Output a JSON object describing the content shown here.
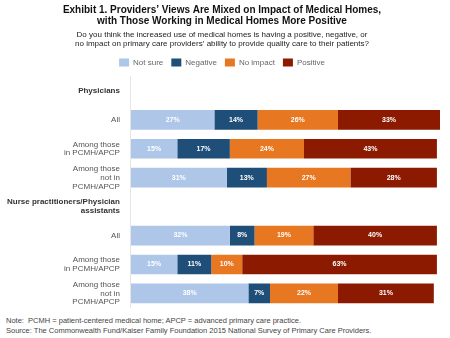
{
  "chart_data": {
    "type": "bar",
    "orientation": "horizontal",
    "stacked": true,
    "title": "Exhibit 1. Providers’ Views Are Mixed on Impact of Medical Homes,\nwith Those Working in Medical Homes More Positive",
    "subtitle": "Do you think the increased use of medical homes is having a positive, negative, or\nno impact on primary care providers’ ability to provide quality care to their patients?",
    "note": "Note:  PCMH = patient-centered medical home; APCP = advanced primary care practice.\nSource: The Commonwealth Fund/Kaiser Family Foundation 2015 National Survey of Primary Care Providers.",
    "categories": [
      "All",
      "Among those\nin PCMH/APCP",
      "Among those\nnot in\nPCMH/APCP",
      "All",
      "Among those\nin PCMH/APCP",
      "Among those\nnot in\nPCMH/APCP"
    ],
    "annotations": [
      {
        "text": "Physicians",
        "before": 0
      },
      {
        "text": "Nurse practitioners/Physician\nassistants",
        "before": 3
      }
    ],
    "series": [
      {
        "name": "Not sure",
        "color": "#aec6e8",
        "values": [
          27,
          15,
          31,
          32,
          15,
          38
        ],
        "value_labels": [
          "27%",
          "15%",
          "31%",
          "32%",
          "15%",
          "38%"
        ]
      },
      {
        "name": "Negative",
        "color": "#1f4e79",
        "values": [
          14,
          17,
          13,
          8,
          11,
          7
        ],
        "value_labels": [
          "14%",
          "17%",
          "13%",
          "8%",
          "11%",
          "7%"
        ]
      },
      {
        "name": "No impact",
        "color": "#e87722",
        "values": [
          26,
          24,
          27,
          19,
          10,
          22
        ],
        "value_labels": [
          "26%",
          "24%",
          "27%",
          "19%",
          "10%",
          "22%"
        ]
      },
      {
        "name": "Positive",
        "color": "#8b1a00",
        "values": [
          33,
          43,
          28,
          40,
          63,
          31
        ],
        "value_labels": [
          "33%",
          "43%",
          "28%",
          "40%",
          "63%",
          "31%"
        ]
      }
    ],
    "xlim": [
      0,
      100
    ],
    "tick_labels": "y",
    "grid": false,
    "legend": "top",
    "data_labels": true
  }
}
